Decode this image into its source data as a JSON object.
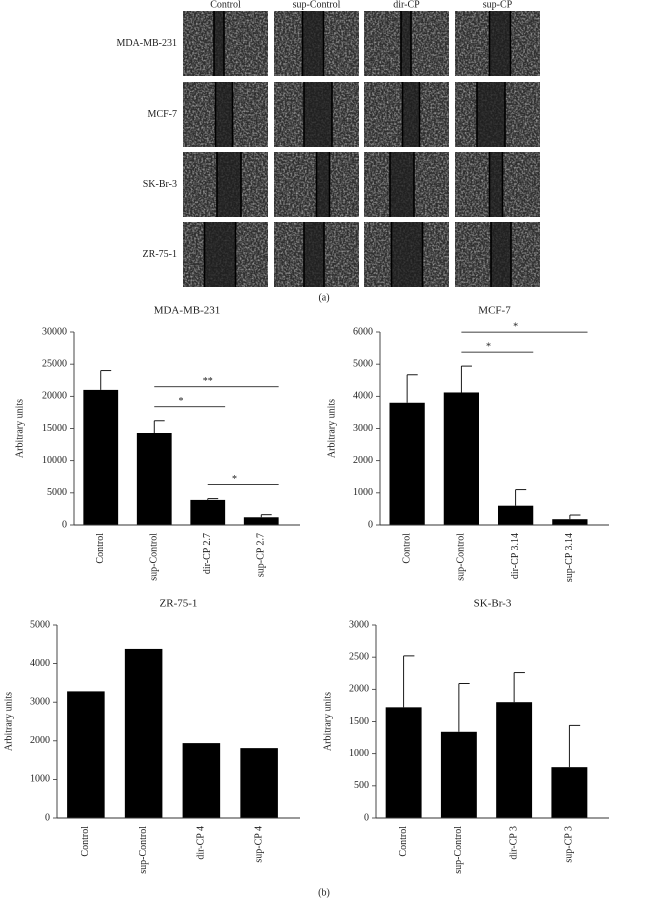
{
  "panel_a": {
    "label": "(a)",
    "columns": [
      "Control",
      "sup-Control",
      "dir-CP",
      "sup-CP"
    ],
    "rows": [
      "MDA-MB-231",
      "MCF-7",
      "SK-Br-3",
      "ZR-75-1"
    ]
  },
  "panel_b_label": "(b)",
  "chart_data": [
    {
      "type": "bar",
      "title": "MDA-MB-231",
      "y_label": "Arbitrary units",
      "categories": [
        "Control",
        "sup-Control",
        "dir-CP 2.7",
        "sup-CP 2.7"
      ],
      "values": [
        21000,
        14300,
        3900,
        1200
      ],
      "errors": [
        3000,
        1900,
        200,
        400
      ],
      "color": "#000000",
      "ylim": [
        0,
        30000
      ],
      "yticks": [
        0,
        5000,
        10000,
        15000,
        20000,
        25000,
        30000
      ],
      "annotations": [
        {
          "text": "*",
          "from": "sup-Control",
          "to": "dir-CP 2.7"
        },
        {
          "text": "**",
          "from": "sup-Control",
          "to": "sup-CP 2.7"
        },
        {
          "text": "*",
          "from": "dir-CP 2.7",
          "to": "sup-CP 2.7"
        }
      ]
    },
    {
      "type": "bar",
      "title": "MCF-7",
      "y_label": "Arbitrary units",
      "categories": [
        "Control",
        "sup-Control",
        "dir-CP 3.14",
        "sup-CP 3.14"
      ],
      "values": [
        3800,
        4120,
        600,
        180
      ],
      "errors": [
        870,
        820,
        500,
        130
      ],
      "color": "#000000",
      "ylim": [
        0,
        6000
      ],
      "yticks": [
        0,
        1000,
        2000,
        3000,
        4000,
        5000,
        6000
      ],
      "annotations": [
        {
          "text": "*",
          "from": "sup-Control",
          "to": "dir-CP 3.14"
        },
        {
          "text": "*",
          "from": "sup-Control",
          "to": "sup-CP 3.14"
        }
      ]
    },
    {
      "type": "bar",
      "title": "ZR-75-1",
      "y_label": "Arbitrary units",
      "categories": [
        "Control",
        "sup-Control",
        "dir-CP 4",
        "sup-CP 4"
      ],
      "values": [
        3280,
        4380,
        1940,
        1810
      ],
      "color": "#000000",
      "ylim": [
        0,
        5000
      ],
      "yticks": [
        0,
        1000,
        2000,
        3000,
        4000,
        5000
      ]
    },
    {
      "type": "bar",
      "title": "SK-Br-3",
      "y_label": "Arbitrary units",
      "categories": [
        "Control",
        "sup-Control",
        "dir-CP 3",
        "sup-CP 3"
      ],
      "values": [
        1720,
        1340,
        1800,
        790
      ],
      "errors": [
        800,
        750,
        460,
        650
      ],
      "color": "#000000",
      "ylim": [
        0,
        3000
      ],
      "yticks": [
        0,
        500,
        1000,
        1500,
        2000,
        2500,
        3000
      ]
    }
  ]
}
